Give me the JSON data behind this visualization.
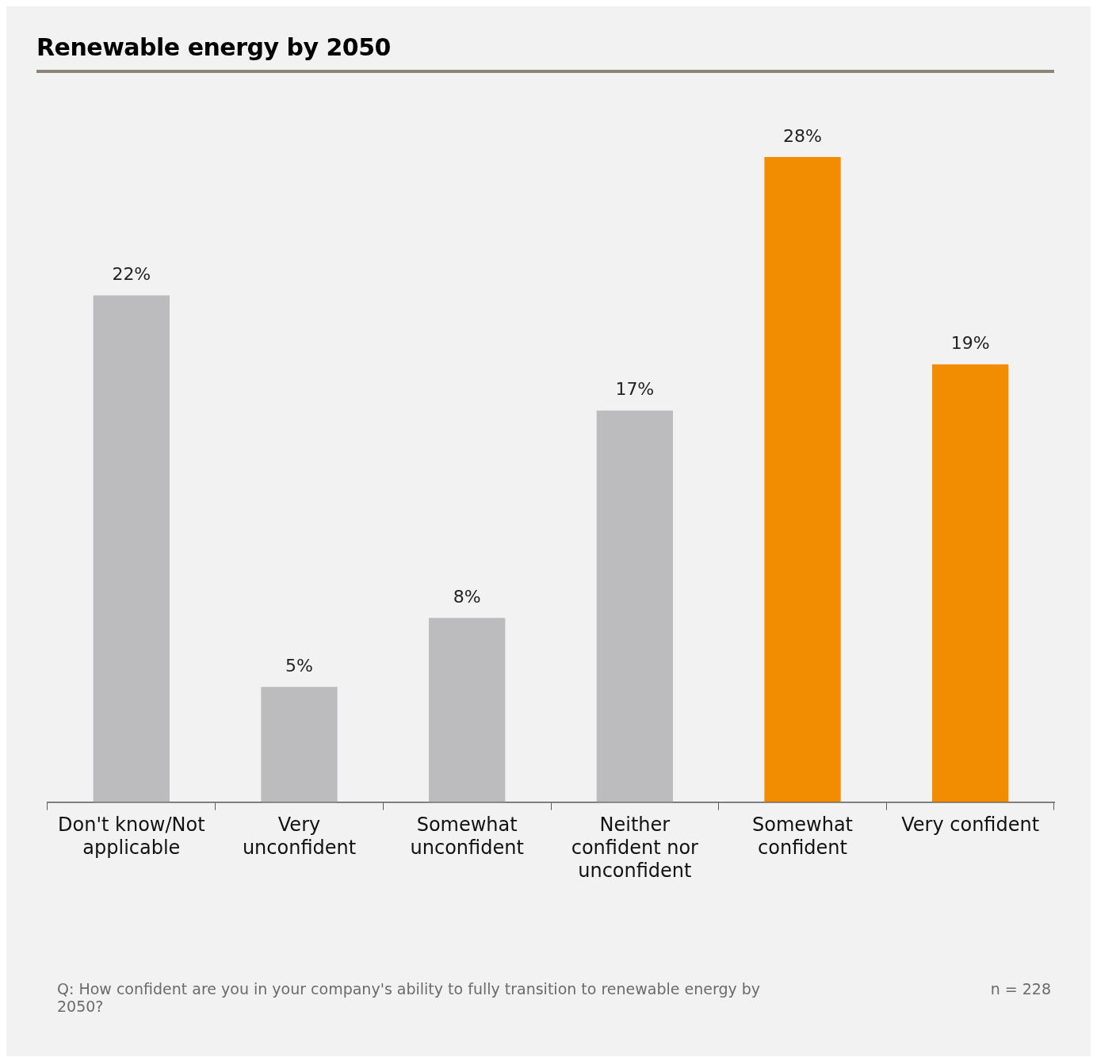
{
  "chart_data": {
    "type": "bar",
    "title": "Renewable energy by 2050",
    "categories": [
      "Don't know/Not applicable",
      "Very unconfident",
      "Somewhat unconfident",
      "Neither confident nor unconfident",
      "Somewhat confident",
      "Very confident"
    ],
    "values": [
      22,
      5,
      8,
      17,
      28,
      19
    ],
    "value_labels": [
      "22%",
      "5%",
      "8%",
      "17%",
      "28%",
      "19%"
    ],
    "colors": [
      "#bcbcbe",
      "#bcbcbe",
      "#bcbcbe",
      "#bcbcbe",
      "#f28c00",
      "#f28c00"
    ],
    "grid": false,
    "legend": false,
    "annotations": [
      "Q: How confident are you in your company's ability to fully transition to renewable energy by 2050?",
      "n = 228"
    ]
  }
}
